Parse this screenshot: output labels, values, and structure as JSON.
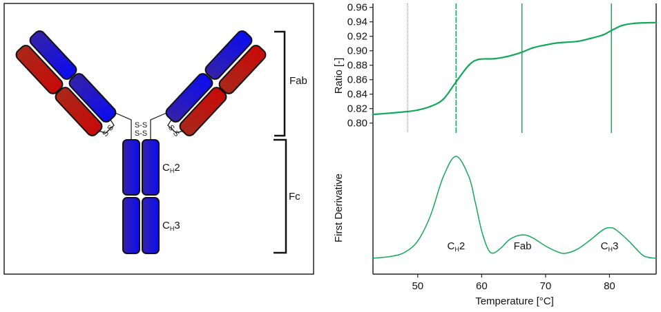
{
  "diagram": {
    "region_labels": {
      "fab": "Fab",
      "fc": "Fc"
    },
    "domain_labels": {
      "ch2": {
        "main": "C",
        "sub": "H",
        "suffix": "2"
      },
      "ch3": {
        "main": "C",
        "sub": "H",
        "suffix": "3"
      }
    },
    "disulfide": "S-S",
    "colors": {
      "heavy_chain": "#1a10d8",
      "light_chain": "#b81410"
    }
  },
  "chart_data": [
    {
      "type": "scatter",
      "panel": "top",
      "ylabel": "Ratio [-]",
      "ylim": [
        0.795,
        0.965
      ],
      "yticks": [
        "0.80",
        "0.82",
        "0.84",
        "0.86",
        "0.88",
        "0.90",
        "0.92",
        "0.94",
        "0.96"
      ],
      "xlim": [
        43,
        87.3
      ],
      "color": "#12a858",
      "x": [
        43,
        46,
        48.4,
        50,
        52,
        54,
        56,
        58,
        59.5,
        62,
        64,
        66.3,
        68,
        70,
        72,
        75,
        77,
        79,
        80.3,
        82,
        84,
        87.3
      ],
      "y": [
        0.812,
        0.814,
        0.816,
        0.818,
        0.823,
        0.833,
        0.857,
        0.88,
        0.888,
        0.889,
        0.892,
        0.898,
        0.904,
        0.908,
        0.911,
        0.913,
        0.917,
        0.922,
        0.928,
        0.935,
        0.938,
        0.939
      ],
      "vlines": [
        {
          "x": 48.4,
          "style": "dotted"
        },
        {
          "x": 56.0,
          "style": "dashed"
        },
        {
          "x": 66.3,
          "style": "solid"
        },
        {
          "x": 80.3,
          "style": "solid"
        }
      ]
    },
    {
      "type": "line",
      "panel": "bottom",
      "ylabel": "First Derivative",
      "xlabel": "Temperature [°C]",
      "xlim": [
        43,
        87.3
      ],
      "xticks": [
        "50",
        "60",
        "70",
        "80"
      ],
      "color": "#12a858",
      "x": [
        43,
        46,
        48,
        50,
        52,
        54,
        56,
        58,
        59,
        60,
        61,
        61.8,
        63,
        64.5,
        66.4,
        68,
        70,
        72,
        73.2,
        75,
        77,
        79,
        80,
        81,
        83,
        85,
        86,
        87.3
      ],
      "y": [
        0,
        0.02,
        0.06,
        0.17,
        0.42,
        0.8,
        1.0,
        0.8,
        0.55,
        0.27,
        0.09,
        0.05,
        0.1,
        0.19,
        0.23,
        0.2,
        0.12,
        0.06,
        0.05,
        0.09,
        0.18,
        0.28,
        0.3,
        0.28,
        0.17,
        0.04,
        0.01,
        0
      ],
      "annotations": [
        {
          "x": 56,
          "main": "C",
          "sub": "H",
          "suffix": "2"
        },
        {
          "x": 66.4,
          "main": "Fab",
          "sub": "",
          "suffix": ""
        },
        {
          "x": 80,
          "main": "C",
          "sub": "H",
          "suffix": "3"
        }
      ]
    }
  ]
}
